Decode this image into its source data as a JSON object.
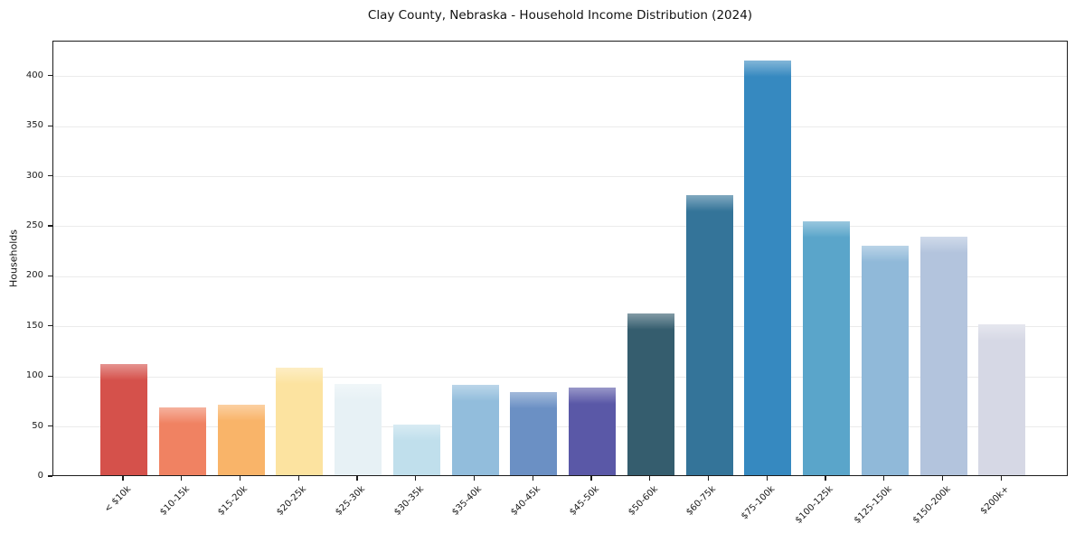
{
  "chart_data": {
    "type": "bar",
    "title": "Clay County, Nebraska - Household Income Distribution (2024)",
    "xlabel": "",
    "ylabel": "Households",
    "categories": [
      "< $10k",
      "$10-15k",
      "$15-20k",
      "$20-25k",
      "$25-30k",
      "$30-35k",
      "$35-40k",
      "$40-45k",
      "$45-50k",
      "$50-60k",
      "$60-75k",
      "$75-100k",
      "$100-125k",
      "$125-150k",
      "$150-200k",
      "$200k+"
    ],
    "values": [
      111,
      68,
      70,
      107,
      91,
      51,
      90,
      83,
      88,
      162,
      280,
      414,
      254,
      229,
      238,
      151
    ],
    "colors": [
      "#d5514b",
      "#f08262",
      "#f9b469",
      "#fce3a0",
      "#e7f1f5",
      "#c0dfec",
      "#92bddc",
      "#6b90c4",
      "#5a58a7",
      "#355d6e",
      "#347499",
      "#3689c0",
      "#5aa5ca",
      "#90b9d9",
      "#b3c4dd",
      "#d6d8e5"
    ],
    "ylim": [
      0,
      435
    ],
    "yticks": [
      0,
      50,
      100,
      150,
      200,
      250,
      300,
      350,
      400
    ],
    "grid": "horizontal",
    "legend": "none",
    "background_color": "#ffffff",
    "gridline_color": "#ebebeb",
    "frame_color": "#1c1c1c",
    "x_tick_rotation_deg": 45
  }
}
